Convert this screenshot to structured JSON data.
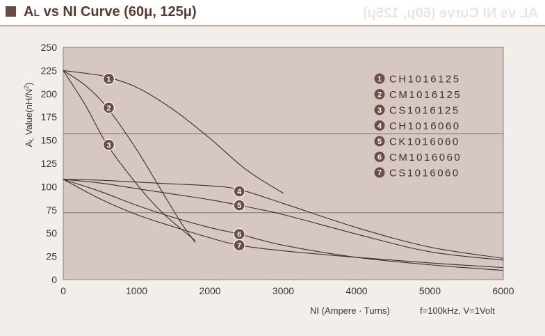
{
  "page": {
    "title": "AL vs NI Curve (60μ, 125μ)",
    "title_main": "A",
    "title_sub": "L",
    "title_rest": " vs NI Curve (60μ, 125μ)",
    "ghost_text": "AL vs NI Curve (60μ, 125μ)"
  },
  "colors": {
    "plot_bg": "#d6c7c3",
    "curve": "#3a2f2d",
    "marker": "#6e4b45",
    "accent": "#5b3a34"
  },
  "chart_data": {
    "type": "line",
    "title": "AL vs NI Curve (60μ, 125μ)",
    "xlabel": "NI (Ampere · Turns)",
    "ylabel": "AL Value(nH/N²)",
    "ylabel_main": "A",
    "ylabel_sub": "L",
    "ylabel_rest": " Value(nH/N",
    "ylabel_sup": "2",
    "ylabel_end": ")",
    "note": "f=100kHz, V=1Volt",
    "xlim": [
      0,
      6000
    ],
    "ylim": [
      0,
      250
    ],
    "xticks": [
      "0",
      "1000",
      "2000",
      "3000",
      "4000",
      "5000",
      "6000"
    ],
    "yticks": [
      "0",
      "25",
      "50",
      "75",
      "100",
      "125",
      "150",
      "175",
      "200",
      "225",
      "250"
    ],
    "grid_lines_y": [
      72,
      157
    ],
    "legend_position": "top-right",
    "series": [
      {
        "id": "1",
        "name": "CH1016125",
        "label_at": [
          620,
          216
        ],
        "points": [
          [
            0,
            225
          ],
          [
            400,
            221
          ],
          [
            600,
            218
          ],
          [
            1000,
            207
          ],
          [
            1500,
            183
          ],
          [
            2000,
            152
          ],
          [
            2500,
            118
          ],
          [
            3000,
            93
          ]
        ]
      },
      {
        "id": "2",
        "name": "CM1016125",
        "label_at": [
          620,
          185
        ],
        "points": [
          [
            0,
            225
          ],
          [
            300,
            209
          ],
          [
            600,
            185
          ],
          [
            1000,
            140
          ],
          [
            1300,
            101
          ],
          [
            1600,
            62
          ],
          [
            1800,
            40
          ]
        ]
      },
      {
        "id": "3",
        "name": "CS1016125",
        "label_at": [
          620,
          145
        ],
        "points": [
          [
            0,
            225
          ],
          [
            300,
            188
          ],
          [
            600,
            145
          ],
          [
            1000,
            103
          ],
          [
            1300,
            76
          ],
          [
            1600,
            55
          ],
          [
            1800,
            42
          ]
        ]
      },
      {
        "id": "4",
        "name": "CH1016060",
        "label_at": [
          2400,
          95
        ],
        "points": [
          [
            0,
            108
          ],
          [
            500,
            107
          ],
          [
            1000,
            105
          ],
          [
            1500,
            103
          ],
          [
            2000,
            101
          ],
          [
            2400,
            97
          ],
          [
            3000,
            82
          ],
          [
            4000,
            56
          ],
          [
            5000,
            35
          ],
          [
            6000,
            23
          ]
        ]
      },
      {
        "id": "5",
        "name": "CK1016060",
        "label_at": [
          2400,
          80
        ],
        "points": [
          [
            0,
            108
          ],
          [
            500,
            104
          ],
          [
            1000,
            98
          ],
          [
            1500,
            92
          ],
          [
            2000,
            86
          ],
          [
            2400,
            80
          ],
          [
            3000,
            70
          ],
          [
            4000,
            49
          ],
          [
            5000,
            30
          ],
          [
            6000,
            21
          ]
        ]
      },
      {
        "id": "6",
        "name": "CM1016060",
        "label_at": [
          2400,
          49
        ],
        "points": [
          [
            0,
            108
          ],
          [
            500,
            95
          ],
          [
            1000,
            80
          ],
          [
            1500,
            67
          ],
          [
            2000,
            56
          ],
          [
            2400,
            49
          ],
          [
            3000,
            37
          ],
          [
            4000,
            24
          ],
          [
            5000,
            16
          ],
          [
            6000,
            10
          ]
        ]
      },
      {
        "id": "7",
        "name": "CS1016060",
        "label_at": [
          2400,
          37
        ],
        "points": [
          [
            0,
            108
          ],
          [
            500,
            87
          ],
          [
            1000,
            70
          ],
          [
            1500,
            57
          ],
          [
            2000,
            45
          ],
          [
            2400,
            37
          ],
          [
            3000,
            31
          ],
          [
            4000,
            24
          ],
          [
            5000,
            18
          ],
          [
            6000,
            13
          ]
        ]
      }
    ]
  }
}
